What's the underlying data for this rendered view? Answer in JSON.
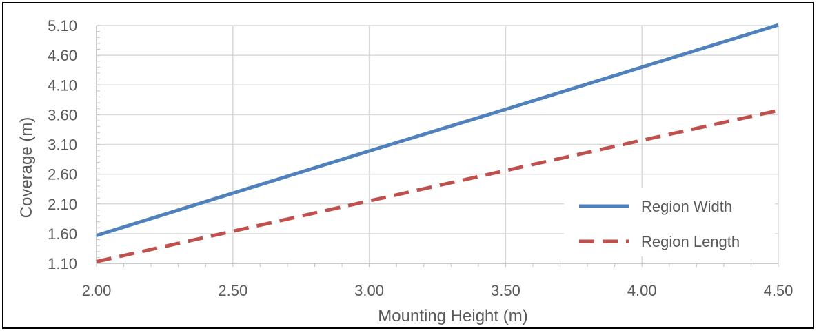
{
  "chart_data": {
    "type": "line",
    "title": "",
    "xlabel": "Mounting Height (m)",
    "ylabel": "Coverage (m)",
    "xlim": [
      2.0,
      4.5
    ],
    "ylim": [
      1.1,
      5.1
    ],
    "x_ticks": [
      "2.00",
      "2.50",
      "3.00",
      "3.50",
      "4.00",
      "4.50"
    ],
    "y_ticks": [
      "1.10",
      "1.60",
      "2.10",
      "2.60",
      "3.10",
      "3.60",
      "4.10",
      "4.60",
      "5.10"
    ],
    "grid": true,
    "legend_position": "bottom-right",
    "series": [
      {
        "name": "Region Width",
        "x": [
          2.0,
          2.5,
          3.0,
          3.5,
          4.0,
          4.5
        ],
        "y": [
          1.57,
          2.28,
          2.99,
          3.69,
          4.4,
          5.11
        ],
        "color": "#4F81BD",
        "style": "solid"
      },
      {
        "name": "Region Length",
        "x": [
          2.0,
          2.5,
          3.0,
          3.5,
          4.0,
          4.5
        ],
        "y": [
          1.13,
          1.64,
          2.15,
          2.66,
          3.17,
          3.67
        ],
        "color": "#C0504D",
        "style": "dashed"
      }
    ]
  }
}
